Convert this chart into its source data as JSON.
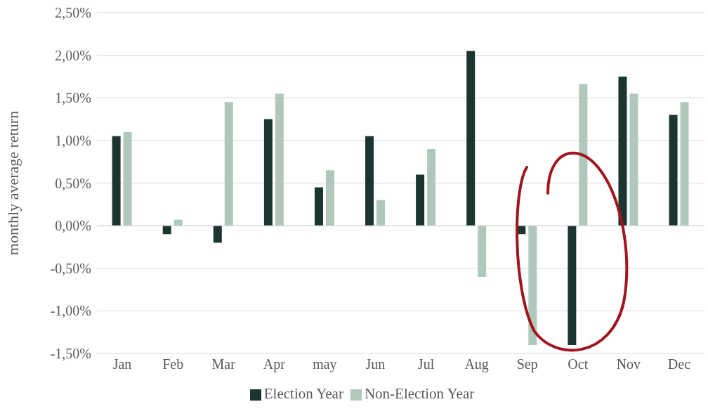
{
  "chart_data": {
    "type": "bar",
    "ylabel": "monthly average return",
    "categories": [
      "Jan",
      "Feb",
      "Mar",
      "Apr",
      "may",
      "Jun",
      "Jul",
      "Aug",
      "Sep",
      "Oct",
      "Nov",
      "Dec"
    ],
    "series": [
      {
        "name": "Election Year",
        "color": "#1c3530",
        "values": [
          1.05,
          -0.1,
          -0.2,
          1.25,
          0.45,
          1.05,
          0.6,
          2.05,
          -0.1,
          -1.4,
          1.75,
          1.3
        ]
      },
      {
        "name": "Non-Election Year",
        "color": "#b0c8bb",
        "values": [
          1.1,
          0.07,
          1.45,
          1.55,
          0.65,
          0.3,
          0.9,
          -0.6,
          -1.4,
          1.66,
          1.55,
          1.45
        ]
      }
    ],
    "ylim": [
      -1.5,
      2.5
    ],
    "yticks": [
      {
        "value": -1.5,
        "label": "-1,50%"
      },
      {
        "value": -1,
        "label": "-1,00%"
      },
      {
        "value": -0.5,
        "label": "-0,50%"
      },
      {
        "value": 0,
        "label": "0,00%"
      },
      {
        "value": 0.5,
        "label": "0,50%"
      },
      {
        "value": 1,
        "label": "1,00%"
      },
      {
        "value": 1.5,
        "label": "1,50%"
      },
      {
        "value": 2,
        "label": "2,00%"
      },
      {
        "value": 2.5,
        "label": "2,50%"
      }
    ],
    "grid": "y",
    "legend": "bottom"
  }
}
